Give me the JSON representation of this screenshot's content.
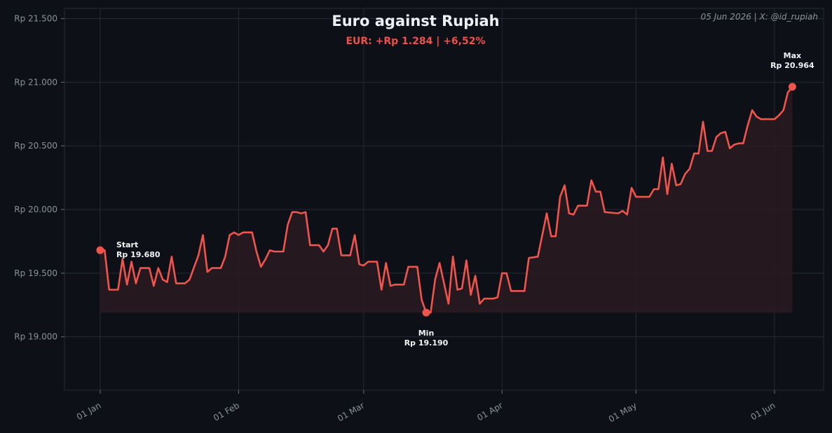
{
  "chart_data": {
    "type": "line",
    "title": "Euro against Rupiah",
    "subtitle": "EUR: +Rp 1.284 | +6,52%",
    "credit": "05 Jun 2026 | X: @id_rupiah",
    "xlabel": "",
    "ylabel": "",
    "ylim": [
      18580,
      21580
    ],
    "xlim": [
      "2025-12-24",
      "2026-06-12"
    ],
    "grid": true,
    "yticks": [
      {
        "value": 19000,
        "label": "Rp 19.000"
      },
      {
        "value": 19500,
        "label": "Rp 19.500"
      },
      {
        "value": 20000,
        "label": "Rp 20.000"
      },
      {
        "value": 20500,
        "label": "Rp 20.500"
      },
      {
        "value": 21000,
        "label": "Rp 21.000"
      },
      {
        "value": 21500,
        "label": "Rp 21.500"
      }
    ],
    "xticks": [
      {
        "date": "2026-01-01",
        "label": "01 Jan"
      },
      {
        "date": "2026-02-01",
        "label": "01 Feb"
      },
      {
        "date": "2026-03-01",
        "label": "01 Mar"
      },
      {
        "date": "2026-04-01",
        "label": "01 Apr"
      },
      {
        "date": "2026-05-01",
        "label": "01 May"
      },
      {
        "date": "2026-06-01",
        "label": "01 Jun"
      }
    ],
    "series": [
      {
        "color": "#f0554d",
        "points": [
          [
            "2026-01-01",
            19680
          ],
          [
            "2026-01-02",
            19680
          ],
          [
            "2026-01-03",
            19370
          ],
          [
            "2026-01-05",
            19370
          ],
          [
            "2026-01-06",
            19610
          ],
          [
            "2026-01-07",
            19410
          ],
          [
            "2026-01-08",
            19590
          ],
          [
            "2026-01-09",
            19420
          ],
          [
            "2026-01-10",
            19540
          ],
          [
            "2026-01-12",
            19540
          ],
          [
            "2026-01-13",
            19400
          ],
          [
            "2026-01-14",
            19540
          ],
          [
            "2026-01-15",
            19450
          ],
          [
            "2026-01-16",
            19430
          ],
          [
            "2026-01-17",
            19630
          ],
          [
            "2026-01-18",
            19420
          ],
          [
            "2026-01-20",
            19420
          ],
          [
            "2026-01-21",
            19450
          ],
          [
            "2026-01-23",
            19640
          ],
          [
            "2026-01-24",
            19800
          ],
          [
            "2026-01-25",
            19510
          ],
          [
            "2026-01-26",
            19540
          ],
          [
            "2026-01-28",
            19540
          ],
          [
            "2026-01-29",
            19630
          ],
          [
            "2026-01-30",
            19800
          ],
          [
            "2026-01-31",
            19820
          ],
          [
            "2026-02-01",
            19800
          ],
          [
            "2026-02-02",
            19820
          ],
          [
            "2026-02-04",
            19820
          ],
          [
            "2026-02-05",
            19670
          ],
          [
            "2026-02-06",
            19550
          ],
          [
            "2026-02-07",
            19610
          ],
          [
            "2026-02-08",
            19680
          ],
          [
            "2026-02-09",
            19670
          ],
          [
            "2026-02-11",
            19670
          ],
          [
            "2026-02-12",
            19880
          ],
          [
            "2026-02-13",
            19980
          ],
          [
            "2026-02-14",
            19980
          ],
          [
            "2026-02-15",
            19970
          ],
          [
            "2026-02-16",
            19980
          ],
          [
            "2026-02-17",
            19720
          ],
          [
            "2026-02-19",
            19720
          ],
          [
            "2026-02-20",
            19670
          ],
          [
            "2026-02-21",
            19720
          ],
          [
            "2026-02-22",
            19850
          ],
          [
            "2026-02-23",
            19850
          ],
          [
            "2026-02-24",
            19640
          ],
          [
            "2026-02-26",
            19640
          ],
          [
            "2026-02-27",
            19800
          ],
          [
            "2026-02-28",
            19570
          ],
          [
            "2026-03-01",
            19560
          ],
          [
            "2026-03-02",
            19590
          ],
          [
            "2026-03-04",
            19590
          ],
          [
            "2026-03-05",
            19370
          ],
          [
            "2026-03-06",
            19580
          ],
          [
            "2026-03-07",
            19400
          ],
          [
            "2026-03-08",
            19410
          ],
          [
            "2026-03-10",
            19410
          ],
          [
            "2026-03-11",
            19550
          ],
          [
            "2026-03-13",
            19550
          ],
          [
            "2026-03-14",
            19290
          ],
          [
            "2026-03-15",
            19190
          ],
          [
            "2026-03-16",
            19190
          ],
          [
            "2026-03-17",
            19450
          ],
          [
            "2026-03-18",
            19580
          ],
          [
            "2026-03-19",
            19420
          ],
          [
            "2026-03-20",
            19260
          ],
          [
            "2026-03-21",
            19630
          ],
          [
            "2026-03-22",
            19370
          ],
          [
            "2026-03-23",
            19380
          ],
          [
            "2026-03-24",
            19600
          ],
          [
            "2026-03-25",
            19330
          ],
          [
            "2026-03-26",
            19480
          ],
          [
            "2026-03-27",
            19260
          ],
          [
            "2026-03-28",
            19300
          ],
          [
            "2026-03-30",
            19300
          ],
          [
            "2026-03-31",
            19310
          ],
          [
            "2026-04-01",
            19500
          ],
          [
            "2026-04-02",
            19500
          ],
          [
            "2026-04-03",
            19360
          ],
          [
            "2026-04-06",
            19360
          ],
          [
            "2026-04-07",
            19620
          ],
          [
            "2026-04-09",
            19630
          ],
          [
            "2026-04-10",
            19800
          ],
          [
            "2026-04-11",
            19970
          ],
          [
            "2026-04-12",
            19790
          ],
          [
            "2026-04-13",
            19790
          ],
          [
            "2026-04-14",
            20100
          ],
          [
            "2026-04-15",
            20190
          ],
          [
            "2026-04-16",
            19970
          ],
          [
            "2026-04-17",
            19960
          ],
          [
            "2026-04-18",
            20030
          ],
          [
            "2026-04-20",
            20030
          ],
          [
            "2026-04-21",
            20230
          ],
          [
            "2026-04-22",
            20140
          ],
          [
            "2026-04-23",
            20140
          ],
          [
            "2026-04-24",
            19980
          ],
          [
            "2026-04-27",
            19970
          ],
          [
            "2026-04-28",
            19990
          ],
          [
            "2026-04-29",
            19960
          ],
          [
            "2026-04-30",
            20170
          ],
          [
            "2026-05-01",
            20100
          ],
          [
            "2026-05-04",
            20100
          ],
          [
            "2026-05-05",
            20160
          ],
          [
            "2026-05-06",
            20160
          ],
          [
            "2026-05-07",
            20410
          ],
          [
            "2026-05-08",
            20120
          ],
          [
            "2026-05-09",
            20360
          ],
          [
            "2026-05-10",
            20190
          ],
          [
            "2026-05-11",
            20200
          ],
          [
            "2026-05-12",
            20280
          ],
          [
            "2026-05-13",
            20320
          ],
          [
            "2026-05-14",
            20440
          ],
          [
            "2026-05-15",
            20440
          ],
          [
            "2026-05-16",
            20690
          ],
          [
            "2026-05-17",
            20460
          ],
          [
            "2026-05-18",
            20460
          ],
          [
            "2026-05-19",
            20570
          ],
          [
            "2026-05-20",
            20600
          ],
          [
            "2026-05-21",
            20610
          ],
          [
            "2026-05-22",
            20480
          ],
          [
            "2026-05-23",
            20510
          ],
          [
            "2026-05-24",
            20520
          ],
          [
            "2026-05-25",
            20520
          ],
          [
            "2026-05-26",
            20660
          ],
          [
            "2026-05-27",
            20780
          ],
          [
            "2026-05-28",
            20730
          ],
          [
            "2026-05-29",
            20710
          ],
          [
            "2026-06-01",
            20710
          ],
          [
            "2026-06-02",
            20740
          ],
          [
            "2026-06-03",
            20780
          ],
          [
            "2026-06-04",
            20920
          ],
          [
            "2026-06-05",
            20964
          ]
        ]
      }
    ],
    "annotations": [
      {
        "label": "Start",
        "value_label": "Rp 19.680",
        "date": "2026-01-01",
        "value": 19680,
        "placement": "right"
      },
      {
        "label": "Min",
        "value_label": "Rp 19.190",
        "date": "2026-03-15",
        "value": 19190,
        "placement": "below"
      },
      {
        "label": "Max",
        "value_label": "Rp 20.964",
        "date": "2026-06-05",
        "value": 20964,
        "placement": "above"
      }
    ],
    "colors": {
      "background": "#0d1017",
      "line": "#f0554d",
      "fill": "#2a1a20",
      "grid": "#262a33",
      "text": "#8b919b"
    }
  }
}
